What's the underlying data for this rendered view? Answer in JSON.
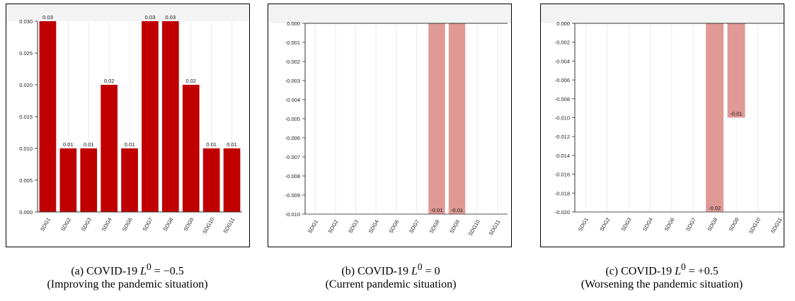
{
  "chart_data": [
    {
      "type": "bar",
      "categories": [
        "SDG1",
        "SDG2",
        "SDG3",
        "SDG4",
        "SDG6",
        "SDG7",
        "SDG8",
        "SDG9",
        "SDG10",
        "SDG11"
      ],
      "values": [
        0.03,
        0.01,
        0.01,
        0.02,
        0.01,
        0.03,
        0.03,
        0.02,
        0.01,
        0.01
      ],
      "data_labels": [
        "0.03",
        "0.01",
        "0.01",
        "0.02",
        "0.01",
        "0.03",
        "0.03",
        "0.02",
        "0.01",
        "0.01"
      ],
      "yticks": [
        "0.030",
        "0.025",
        "0.020",
        "0.015",
        "0.010",
        "0.005",
        "0.000"
      ],
      "ylim": [
        0,
        0.03
      ],
      "grid": true,
      "bar_color": "#c00000",
      "caption": {
        "prefix": "(a)    COVID-19 ",
        "var": "L",
        "sup": "0",
        "eq": " = −0.5",
        "line2": "(Improving the pandemic situation)"
      }
    },
    {
      "type": "bar",
      "categories": [
        "SDG1",
        "SDG2",
        "SDG3",
        "SDG4",
        "SDG6",
        "SDG7",
        "SDG8",
        "SDG9",
        "SDG10",
        "SDG11"
      ],
      "values": [
        0,
        0,
        0,
        0,
        0,
        0,
        -0.01,
        -0.01,
        0,
        0
      ],
      "data_labels": [
        "",
        "",
        "",
        "",
        "",
        "",
        "-0.01",
        "-0.01",
        "",
        ""
      ],
      "yticks": [
        "0.000",
        "-0.001",
        "-0.002",
        "-0.003",
        "-0.004",
        "-0.005",
        "-0.006",
        "-0.007",
        "-0.008",
        "-0.009",
        "-0.010"
      ],
      "ylim": [
        -0.01,
        0
      ],
      "grid": true,
      "bar_color": "#df9a95",
      "caption": {
        "prefix": "(b)    COVID-19 ",
        "var": "L",
        "sup": "0",
        "eq": " = 0",
        "line2": "(Current pandemic situation)"
      }
    },
    {
      "type": "bar",
      "categories": [
        "SDG1",
        "SDG2",
        "SDG3",
        "SDG4",
        "SDG6",
        "SDG7",
        "SDG8",
        "SDG9",
        "SDG10",
        "SDG11"
      ],
      "values": [
        0,
        0,
        0,
        0,
        0,
        0,
        -0.02,
        -0.01,
        0,
        0
      ],
      "data_labels": [
        "",
        "",
        "",
        "",
        "",
        "",
        "-0.02",
        "-0.01",
        "",
        ""
      ],
      "yticks": [
        "0.000",
        "-0.002",
        "-0.004",
        "-0.006",
        "-0.008",
        "-0.010",
        "-0.012",
        "-0.014",
        "-0.016",
        "-0.018",
        "-0.020"
      ],
      "ylim": [
        -0.02,
        0
      ],
      "grid": true,
      "bar_color": "#df9a95",
      "caption": {
        "prefix": "(c)    COVID-19 ",
        "var": "L",
        "sup": "0",
        "eq": " = +0.5",
        "line2": "(Worsening the pandemic situation)"
      }
    }
  ]
}
